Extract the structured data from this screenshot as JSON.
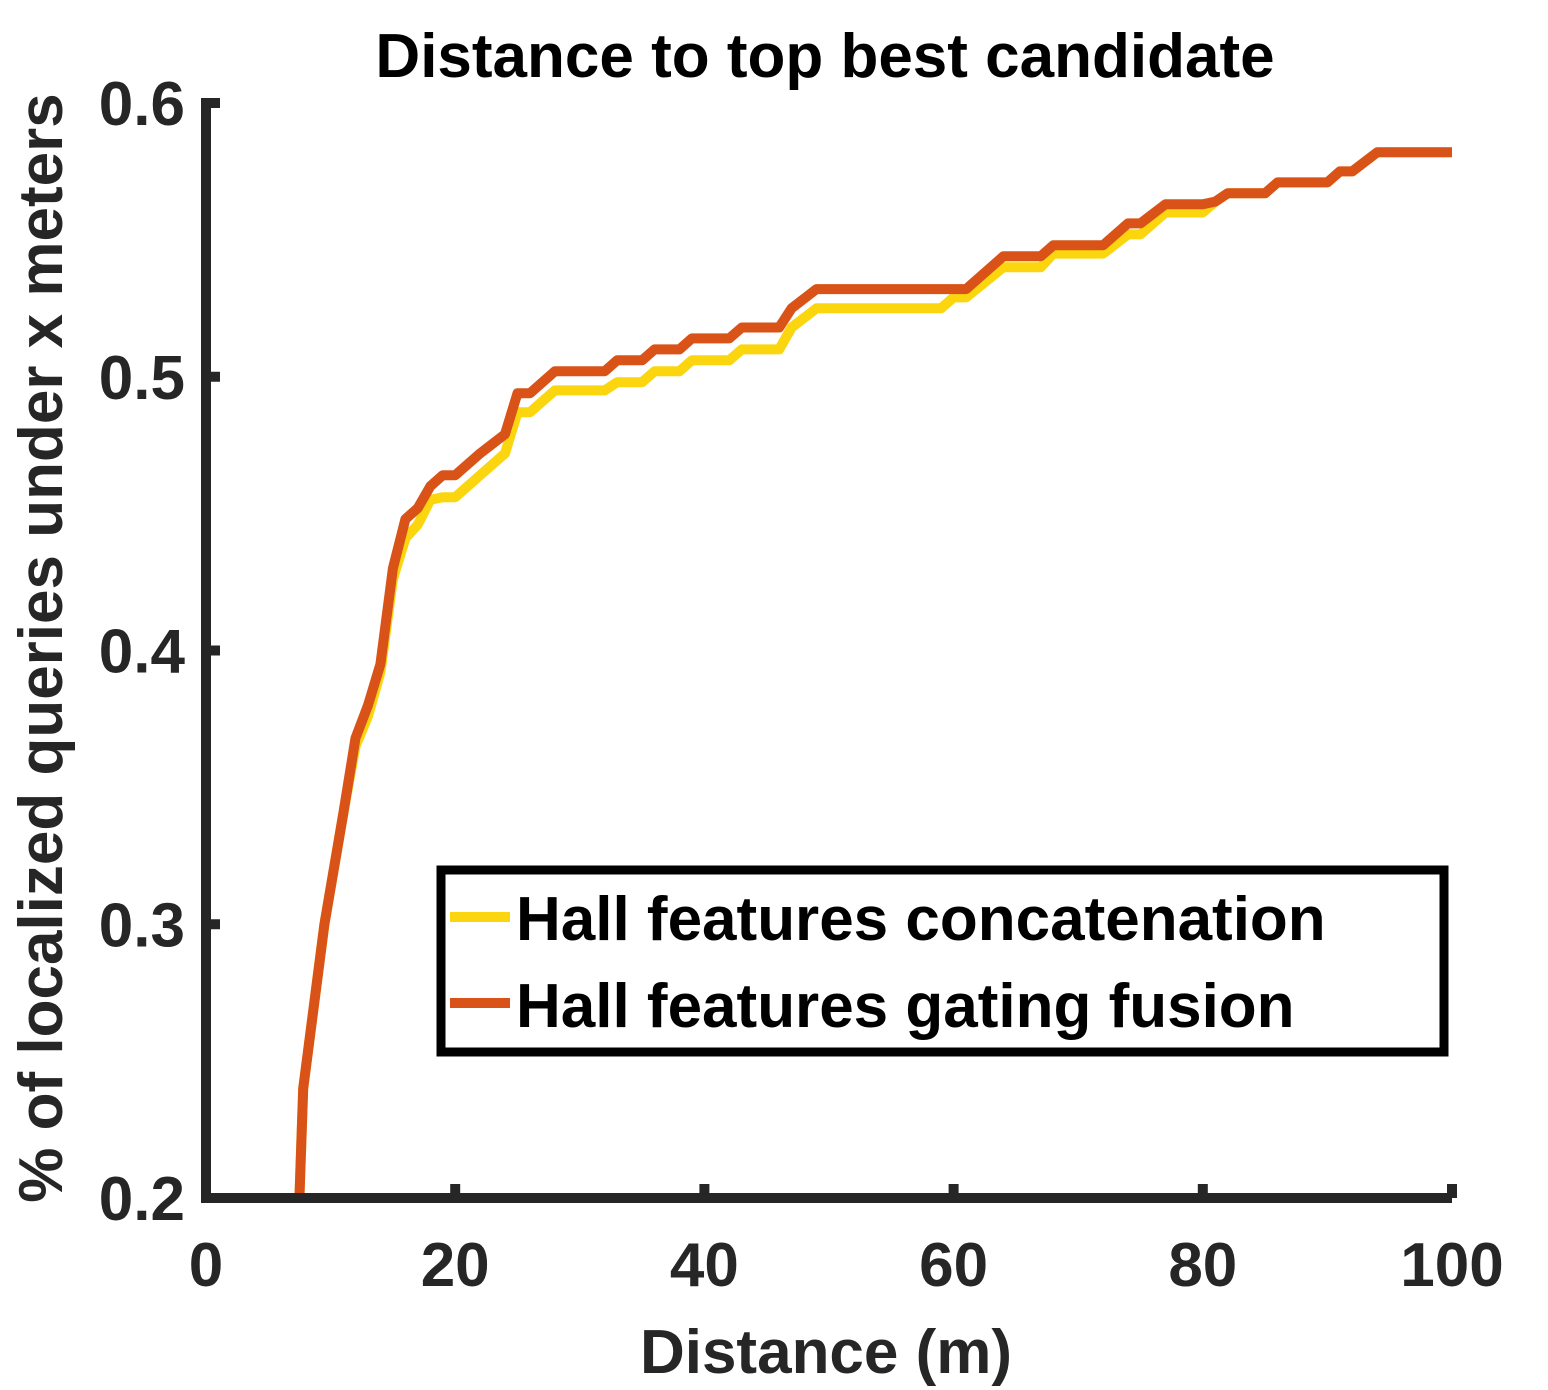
{
  "chart_data": {
    "type": "line",
    "title": "Distance to top best candidate",
    "xlabel": "Distance (m)",
    "ylabel": "% of localized queries under x meters",
    "xlim": [
      0,
      100
    ],
    "ylim": [
      0.2,
      0.6
    ],
    "xticks": [
      0,
      20,
      40,
      60,
      80,
      100
    ],
    "xtick_labels": [
      "0",
      "20",
      "40",
      "60",
      "80",
      "100"
    ],
    "yticks": [
      0.2,
      0.3,
      0.4,
      0.5,
      0.6
    ],
    "ytick_labels": [
      "0.2",
      "0.3",
      "0.4",
      "0.5",
      "0.6"
    ],
    "grid": false,
    "legend_position": "bottom-right",
    "series": [
      {
        "name": "Hall features concatenation",
        "color": "#FBD60E",
        "points": [
          [
            7.5,
            0.2
          ],
          [
            7.8,
            0.24
          ],
          [
            9.5,
            0.3
          ],
          [
            11,
            0.34
          ],
          [
            12,
            0.365
          ],
          [
            13,
            0.376
          ],
          [
            14,
            0.392
          ],
          [
            15,
            0.426
          ],
          [
            16,
            0.441
          ],
          [
            17,
            0.446
          ],
          [
            18,
            0.455
          ],
          [
            19,
            0.456
          ],
          [
            20,
            0.456
          ],
          [
            22,
            0.464
          ],
          [
            24,
            0.472
          ],
          [
            25,
            0.487
          ],
          [
            26,
            0.487
          ],
          [
            28,
            0.495
          ],
          [
            32,
            0.495
          ],
          [
            33,
            0.498
          ],
          [
            35,
            0.498
          ],
          [
            36,
            0.502
          ],
          [
            38,
            0.502
          ],
          [
            39,
            0.506
          ],
          [
            42,
            0.506
          ],
          [
            43,
            0.51
          ],
          [
            46,
            0.51
          ],
          [
            47,
            0.518
          ],
          [
            49,
            0.525
          ],
          [
            59,
            0.525
          ],
          [
            60,
            0.529
          ],
          [
            61,
            0.529
          ],
          [
            64,
            0.54
          ],
          [
            67,
            0.54
          ],
          [
            68,
            0.545
          ],
          [
            72,
            0.545
          ],
          [
            74,
            0.552
          ],
          [
            75,
            0.552
          ],
          [
            77,
            0.56
          ],
          [
            80,
            0.56
          ],
          [
            81,
            0.564
          ],
          [
            82,
            0.567
          ],
          [
            85,
            0.567
          ],
          [
            86,
            0.571
          ],
          [
            90,
            0.571
          ],
          [
            91,
            0.575
          ],
          [
            92,
            0.575
          ],
          [
            94,
            0.582
          ],
          [
            100,
            0.582
          ]
        ]
      },
      {
        "name": "Hall features gating fusion",
        "color": "#D95319",
        "points": [
          [
            7.5,
            0.2
          ],
          [
            7.8,
            0.24
          ],
          [
            9.5,
            0.3
          ],
          [
            11,
            0.34
          ],
          [
            12,
            0.368
          ],
          [
            13,
            0.38
          ],
          [
            14,
            0.395
          ],
          [
            15,
            0.43
          ],
          [
            16,
            0.448
          ],
          [
            17,
            0.452
          ],
          [
            18,
            0.46
          ],
          [
            19,
            0.464
          ],
          [
            20,
            0.464
          ],
          [
            22,
            0.472
          ],
          [
            24,
            0.479
          ],
          [
            25,
            0.494
          ],
          [
            26,
            0.494
          ],
          [
            28,
            0.502
          ],
          [
            32,
            0.502
          ],
          [
            33,
            0.506
          ],
          [
            35,
            0.506
          ],
          [
            36,
            0.51
          ],
          [
            38,
            0.51
          ],
          [
            39,
            0.514
          ],
          [
            42,
            0.514
          ],
          [
            43,
            0.518
          ],
          [
            46,
            0.518
          ],
          [
            47,
            0.525
          ],
          [
            49,
            0.532
          ],
          [
            61,
            0.532
          ],
          [
            64,
            0.544
          ],
          [
            67,
            0.544
          ],
          [
            68,
            0.548
          ],
          [
            72,
            0.548
          ],
          [
            74,
            0.556
          ],
          [
            75,
            0.556
          ],
          [
            77,
            0.563
          ],
          [
            80,
            0.563
          ],
          [
            81,
            0.564
          ],
          [
            82,
            0.567
          ],
          [
            85,
            0.567
          ],
          [
            86,
            0.571
          ],
          [
            90,
            0.571
          ],
          [
            91,
            0.575
          ],
          [
            92,
            0.575
          ],
          [
            94,
            0.582
          ],
          [
            100,
            0.582
          ]
        ]
      }
    ]
  }
}
